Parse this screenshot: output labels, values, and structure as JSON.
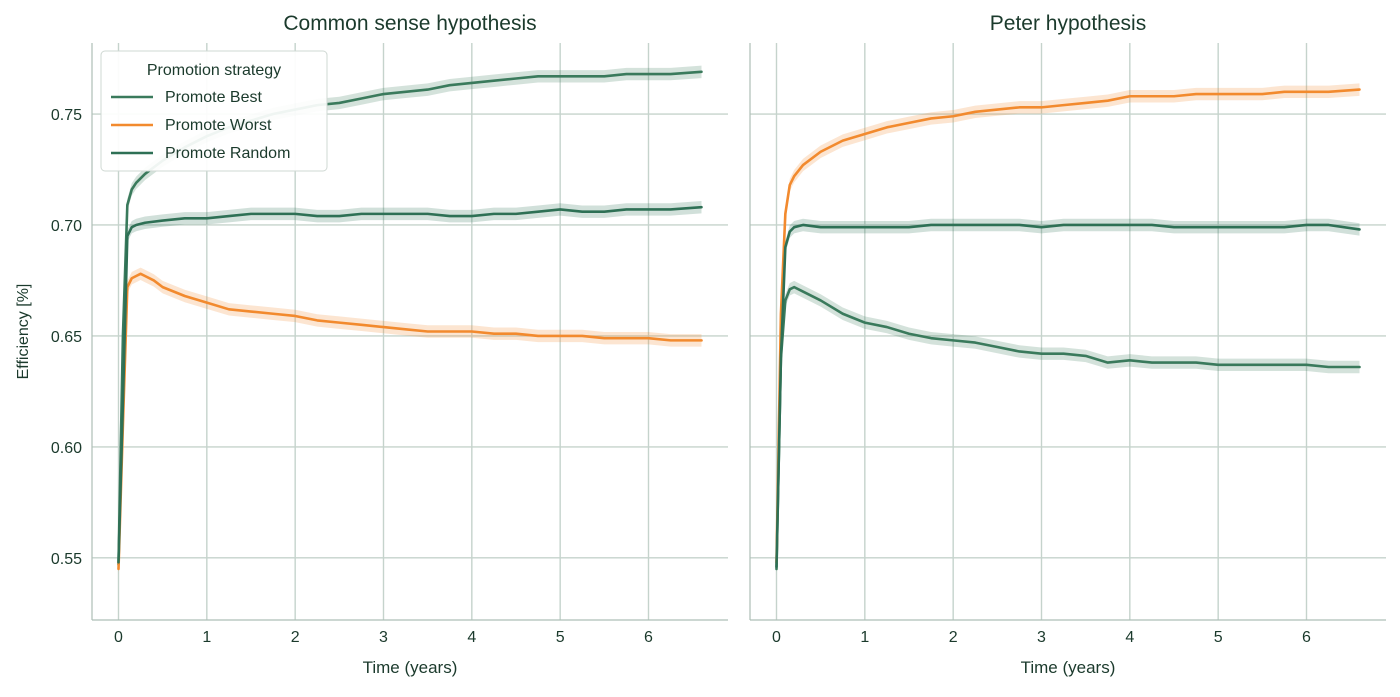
{
  "chart_data": [
    {
      "type": "line",
      "title": "Common sense hypothesis",
      "xlabel": "Time (years)",
      "ylabel": "Efficiency [%]",
      "xlim": [
        -0.3,
        6.9
      ],
      "ylim": [
        0.522,
        0.782
      ],
      "xticks": [
        0,
        1,
        2,
        3,
        4,
        5,
        6
      ],
      "xtick_labels": [
        "0",
        "1",
        "2",
        "3",
        "4",
        "5",
        "6"
      ],
      "yticks": [
        0.55,
        0.6,
        0.65,
        0.7,
        0.75
      ],
      "ytick_labels": [
        "0.55",
        "0.60",
        "0.65",
        "0.70",
        "0.75"
      ],
      "grid": true,
      "legend": {
        "title": "Promotion strategy",
        "placement": "upper-left",
        "entries": [
          "Promote Best",
          "Promote Worst",
          "Promote Random"
        ]
      },
      "series": [
        {
          "name": "Promote Best",
          "color": "#3a7a5c",
          "x": [
            0,
            0.05,
            0.1,
            0.15,
            0.2,
            0.3,
            0.5,
            0.75,
            1.0,
            1.25,
            1.5,
            1.75,
            2.0,
            2.25,
            2.5,
            2.75,
            3.0,
            3.25,
            3.5,
            3.75,
            4.0,
            4.25,
            4.5,
            4.75,
            5.0,
            5.25,
            5.5,
            5.75,
            6.0,
            6.25,
            6.6
          ],
          "y": [
            0.547,
            0.65,
            0.709,
            0.716,
            0.719,
            0.723,
            0.729,
            0.735,
            0.74,
            0.744,
            0.747,
            0.75,
            0.752,
            0.754,
            0.755,
            0.757,
            0.759,
            0.76,
            0.761,
            0.763,
            0.764,
            0.765,
            0.766,
            0.767,
            0.767,
            0.767,
            0.767,
            0.768,
            0.768,
            0.768,
            0.769
          ]
        },
        {
          "name": "Promote Worst",
          "color": "#f28a2e",
          "x": [
            0,
            0.05,
            0.1,
            0.15,
            0.2,
            0.25,
            0.3,
            0.4,
            0.5,
            0.75,
            1.0,
            1.25,
            1.5,
            1.75,
            2.0,
            2.25,
            2.5,
            2.75,
            3.0,
            3.25,
            3.5,
            3.75,
            4.0,
            4.25,
            4.5,
            4.75,
            5.0,
            5.25,
            5.5,
            5.75,
            6.0,
            6.25,
            6.6
          ],
          "y": [
            0.545,
            0.61,
            0.672,
            0.676,
            0.677,
            0.678,
            0.677,
            0.675,
            0.672,
            0.668,
            0.665,
            0.662,
            0.661,
            0.66,
            0.659,
            0.657,
            0.656,
            0.655,
            0.654,
            0.653,
            0.652,
            0.652,
            0.652,
            0.651,
            0.651,
            0.65,
            0.65,
            0.65,
            0.649,
            0.649,
            0.649,
            0.648,
            0.648
          ]
        },
        {
          "name": "Promote Random",
          "color": "#2e7055",
          "x": [
            0,
            0.05,
            0.1,
            0.15,
            0.2,
            0.3,
            0.5,
            0.75,
            1.0,
            1.25,
            1.5,
            1.75,
            2.0,
            2.25,
            2.5,
            2.75,
            3.0,
            3.25,
            3.5,
            3.75,
            4.0,
            4.25,
            4.5,
            4.75,
            5.0,
            5.25,
            5.5,
            5.75,
            6.0,
            6.25,
            6.6
          ],
          "y": [
            0.548,
            0.62,
            0.695,
            0.699,
            0.7,
            0.701,
            0.702,
            0.703,
            0.703,
            0.704,
            0.705,
            0.705,
            0.705,
            0.704,
            0.704,
            0.705,
            0.705,
            0.705,
            0.705,
            0.704,
            0.704,
            0.705,
            0.705,
            0.706,
            0.707,
            0.706,
            0.706,
            0.707,
            0.707,
            0.707,
            0.708
          ]
        }
      ]
    },
    {
      "type": "line",
      "title": "Peter hypothesis",
      "xlabel": "Time (years)",
      "ylabel": "",
      "xlim": [
        -0.3,
        6.9
      ],
      "ylim": [
        0.522,
        0.782
      ],
      "xticks": [
        0,
        1,
        2,
        3,
        4,
        5,
        6
      ],
      "xtick_labels": [
        "0",
        "1",
        "2",
        "3",
        "4",
        "5",
        "6"
      ],
      "yticks": [
        0.55,
        0.6,
        0.65,
        0.7,
        0.75
      ],
      "ytick_labels": [],
      "grid": true,
      "series": [
        {
          "name": "Promote Best",
          "color": "#3a7a5c",
          "x": [
            0,
            0.05,
            0.1,
            0.15,
            0.2,
            0.3,
            0.5,
            0.75,
            1.0,
            1.25,
            1.5,
            1.75,
            2.0,
            2.25,
            2.5,
            2.75,
            3.0,
            3.25,
            3.5,
            3.75,
            4.0,
            4.25,
            4.5,
            4.75,
            5.0,
            5.25,
            5.5,
            5.75,
            6.0,
            6.25,
            6.6
          ],
          "y": [
            0.545,
            0.64,
            0.666,
            0.671,
            0.672,
            0.67,
            0.666,
            0.66,
            0.656,
            0.654,
            0.651,
            0.649,
            0.648,
            0.647,
            0.645,
            0.643,
            0.642,
            0.642,
            0.641,
            0.638,
            0.639,
            0.638,
            0.638,
            0.638,
            0.637,
            0.637,
            0.637,
            0.637,
            0.637,
            0.636,
            0.636
          ]
        },
        {
          "name": "Promote Worst",
          "color": "#f28a2e",
          "x": [
            0,
            0.05,
            0.1,
            0.15,
            0.2,
            0.3,
            0.5,
            0.75,
            1.0,
            1.25,
            1.5,
            1.75,
            2.0,
            2.25,
            2.5,
            2.75,
            3.0,
            3.25,
            3.5,
            3.75,
            4.0,
            4.25,
            4.5,
            4.75,
            5.0,
            5.25,
            5.5,
            5.75,
            6.0,
            6.25,
            6.6
          ],
          "y": [
            0.548,
            0.66,
            0.705,
            0.718,
            0.722,
            0.727,
            0.733,
            0.738,
            0.741,
            0.744,
            0.746,
            0.748,
            0.749,
            0.751,
            0.752,
            0.753,
            0.753,
            0.754,
            0.755,
            0.756,
            0.758,
            0.758,
            0.758,
            0.759,
            0.759,
            0.759,
            0.759,
            0.76,
            0.76,
            0.76,
            0.761
          ]
        },
        {
          "name": "Promote Random",
          "color": "#2e7055",
          "x": [
            0,
            0.05,
            0.1,
            0.15,
            0.2,
            0.3,
            0.5,
            0.75,
            1.0,
            1.25,
            1.5,
            1.75,
            2.0,
            2.25,
            2.5,
            2.75,
            3.0,
            3.25,
            3.5,
            3.75,
            4.0,
            4.25,
            4.5,
            4.75,
            5.0,
            5.25,
            5.5,
            5.75,
            6.0,
            6.25,
            6.6
          ],
          "y": [
            0.546,
            0.64,
            0.69,
            0.697,
            0.699,
            0.7,
            0.699,
            0.699,
            0.699,
            0.699,
            0.699,
            0.7,
            0.7,
            0.7,
            0.7,
            0.7,
            0.699,
            0.7,
            0.7,
            0.7,
            0.7,
            0.7,
            0.699,
            0.699,
            0.699,
            0.699,
            0.699,
            0.699,
            0.7,
            0.7,
            0.698
          ]
        }
      ]
    }
  ]
}
